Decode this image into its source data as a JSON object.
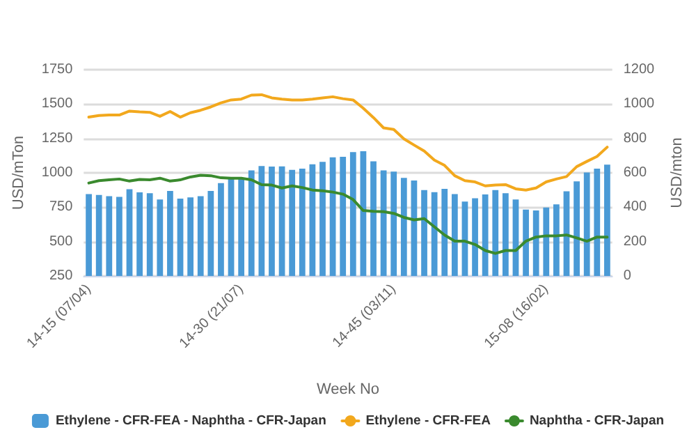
{
  "chart_data": {
    "type": "bar",
    "xlabel": "Week No",
    "ylabel": "USD/mTon",
    "y2label": "USD/mton",
    "categories": [
      "14-15 (07/04)",
      null,
      null,
      null,
      null,
      null,
      null,
      null,
      null,
      null,
      null,
      null,
      null,
      null,
      null,
      "14-30 (21/07)",
      null,
      null,
      null,
      null,
      null,
      null,
      null,
      null,
      null,
      null,
      null,
      null,
      null,
      null,
      "14-45 (03/11)",
      null,
      null,
      null,
      null,
      null,
      null,
      null,
      null,
      null,
      null,
      null,
      null,
      null,
      null,
      "15-08 (16/02)",
      null,
      null,
      null,
      null,
      null,
      null
    ],
    "series": [
      {
        "name": "Ethylene - CFR-FEA - Naphtha - CFR-Japan",
        "axis": "y2",
        "color": "#4a9ad6",
        "values": [
          476,
          471,
          464,
          460,
          505,
          486,
          481,
          445,
          495,
          450,
          457,
          464,
          495,
          540,
          567,
          567,
          614,
          640,
          636,
          638,
          617,
          624,
          650,
          664,
          690,
          693,
          721,
          726,
          667,
          614,
          607,
          571,
          555,
          500,
          488,
          507,
          476,
          433,
          452,
          474,
          500,
          481,
          445,
          386,
          381,
          398,
          417,
          493,
          550,
          602,
          624,
          648
        ]
      },
      {
        "name": "Ethylene - CFR-FEA",
        "type": "line",
        "color": "#f2a81d",
        "values": [
          1405,
          1417,
          1420,
          1420,
          1449,
          1443,
          1440,
          1411,
          1446,
          1405,
          1437,
          1455,
          1479,
          1509,
          1530,
          1536,
          1565,
          1568,
          1545,
          1536,
          1530,
          1530,
          1536,
          1545,
          1553,
          1539,
          1530,
          1470,
          1402,
          1327,
          1315,
          1247,
          1202,
          1158,
          1092,
          1054,
          979,
          943,
          934,
          905,
          911,
          914,
          884,
          875,
          890,
          934,
          955,
          973,
          1045,
          1083,
          1119,
          1187
        ]
      },
      {
        "name": "Naphtha - CFR-Japan",
        "type": "line",
        "color": "#3a8a2e",
        "values": [
          926,
          943,
          949,
          955,
          940,
          952,
          949,
          961,
          940,
          949,
          970,
          982,
          979,
          964,
          961,
          961,
          949,
          914,
          911,
          890,
          905,
          893,
          875,
          869,
          860,
          845,
          806,
          726,
          720,
          717,
          705,
          676,
          658,
          667,
          607,
          548,
          503,
          503,
          479,
          435,
          414,
          435,
          435,
          503,
          533,
          542,
          542,
          548,
          527,
          503,
          533,
          533
        ]
      }
    ],
    "ylim": [
      250,
      1750
    ],
    "yticks": [
      250,
      500,
      750,
      1000,
      1250,
      1500,
      1750
    ],
    "y2lim": [
      0,
      1200
    ],
    "y2ticks": [
      0,
      200,
      400,
      600,
      800,
      1000,
      1200
    ],
    "grid": "y",
    "legend": "bottom",
    "marker": "none",
    "line_style": "solid"
  }
}
